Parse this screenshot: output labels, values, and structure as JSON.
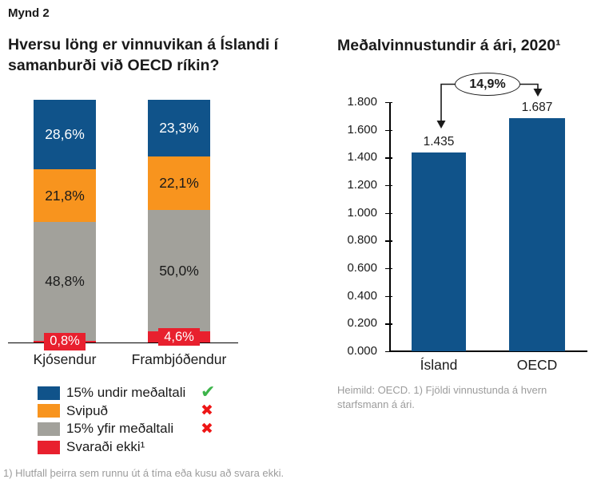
{
  "figure_label": "Mynd 2",
  "left_chart": {
    "title": "Hversu löng er vinnuvikan á Íslandi í samanburði við OECD ríkin?",
    "footnote": "1) Hlutfall þeirra sem runnu út á tíma eða kusu að svara ekki.",
    "legend": [
      {
        "label": "15% undir meðaltali",
        "color": "#10538a",
        "mark": "check"
      },
      {
        "label": "Svipuð",
        "color": "#f8941e",
        "mark": "cross"
      },
      {
        "label": "15% yfir meðaltali",
        "color": "#a2a19b",
        "mark": "cross"
      },
      {
        "label": "Svaraði ekki¹",
        "color": "#e8202e",
        "mark": null
      }
    ]
  },
  "right_chart": {
    "title": "Meðalvinnustundir á ári, 2020¹",
    "annotation": "14,9%",
    "source": "Heimild: OECD. 1) Fjöldi vinnustunda á hvern starfsmann á ári."
  },
  "colors": {
    "blue": "#10538a",
    "orange": "#f8941e",
    "gray": "#a2a19b",
    "red": "#e8202e",
    "check_green": "#3cb44a",
    "cross_red": "#ee1616",
    "muted_text": "#9c9c9c"
  },
  "chart_data": [
    {
      "type": "bar",
      "variant": "stacked-100-percent",
      "stack_order": "top-to-bottom",
      "categories": [
        "Kjósendur",
        "Frambjóðendur"
      ],
      "series": [
        {
          "name": "15% undir meðaltali",
          "color": "#10538a",
          "values": [
            28.6,
            23.3
          ],
          "labels": [
            "28,6%",
            "23,3%"
          ],
          "label_color": "#ffffff"
        },
        {
          "name": "Svipuð",
          "color": "#f8941e",
          "values": [
            21.8,
            22.1
          ],
          "labels": [
            "21,8%",
            "22,1%"
          ],
          "label_color": "#1a1a1a"
        },
        {
          "name": "15% yfir meðaltali",
          "color": "#a2a19b",
          "values": [
            48.8,
            50.0
          ],
          "labels": [
            "48,8%",
            "50,0%"
          ],
          "label_color": "#1a1a1a"
        },
        {
          "name": "Svaraði ekki",
          "color": "#e8202e",
          "values": [
            0.8,
            4.6
          ],
          "labels": [
            "0,8%",
            "4,6%"
          ],
          "label_color": "#ffffff",
          "boxed": true
        }
      ],
      "ylim": [
        0,
        100
      ],
      "grid": false,
      "legend_position": "bottom-left"
    },
    {
      "type": "bar",
      "title": "Meðalvinnustundir á ári, 2020¹",
      "categories": [
        "Ísland",
        "OECD"
      ],
      "values": [
        1435,
        1687
      ],
      "value_labels": [
        "1.435",
        "1.687"
      ],
      "bar_color": "#10538a",
      "ylim": [
        0,
        1800
      ],
      "ytick_labels": [
        "1.800",
        "1.600",
        "1.400",
        "1.200",
        "1.000",
        "0.800",
        "0.600",
        "0.400",
        "0.200",
        "0.000"
      ],
      "grid": false,
      "annotation": {
        "text": "14,9%",
        "meaning": "difference between OECD and Ísland bars"
      }
    }
  ]
}
